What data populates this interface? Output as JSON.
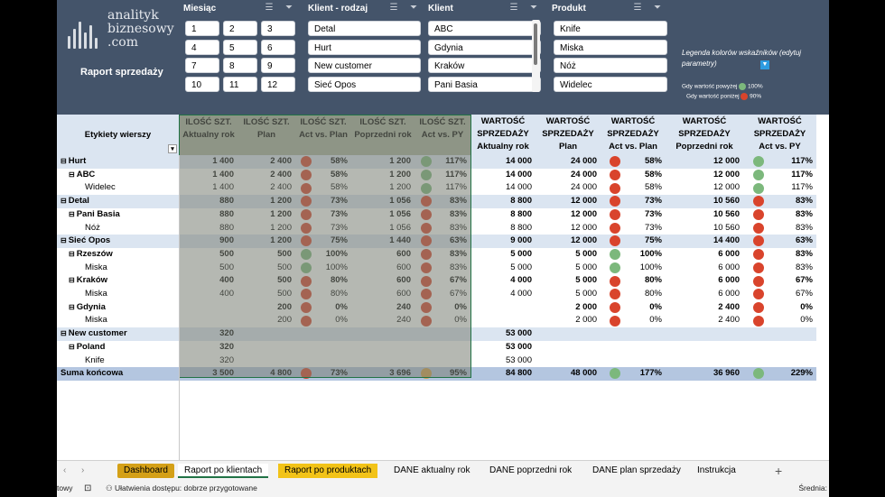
{
  "report_title": "Raport sprzedaży",
  "logo_text": [
    "analityk",
    "biznesowy",
    ".com"
  ],
  "slicers": [
    {
      "title": "Miesiąc",
      "items": [
        "1",
        "2",
        "3",
        "4",
        "5",
        "6",
        "7",
        "8",
        "9",
        "10",
        "11",
        "12"
      ]
    },
    {
      "title": "Klient - rodzaj",
      "items": [
        "Detal",
        "Hurt",
        "New customer",
        "Sieć Opos"
      ]
    },
    {
      "title": "Klient",
      "items": [
        "ABC",
        "Gdynia",
        "Kraków",
        "Pani Basia"
      ]
    },
    {
      "title": "Produkt",
      "items": [
        "Knife",
        "Miska",
        "Nóż",
        "Widelec"
      ]
    }
  ],
  "legend": {
    "title": "Legenda kolorów wskaźników (edytuj parametry)",
    "above": "Gdy wartość powyżej",
    "above_val": "100%",
    "below": "Gdy wartość poniżej",
    "below_val": "90%"
  },
  "headers": {
    "rows": "Etykiety wierszy",
    "cols": [
      [
        "ILOŚĆ SZT.",
        "Aktualny rok"
      ],
      [
        "ILOŚĆ SZT.",
        "Plan"
      ],
      [
        "ILOŚĆ SZT.",
        "Act vs. Plan"
      ],
      [
        "ILOŚĆ SZT.",
        "Poprzedni rok"
      ],
      [
        "ILOŚĆ SZT.",
        "Act vs. PY"
      ],
      [
        "WARTOŚĆ",
        "SPRZEDAŻY",
        "Aktualny rok"
      ],
      [
        "WARTOŚĆ",
        "SPRZEDAŻY",
        "Plan"
      ],
      [
        "WARTOŚĆ",
        "SPRZEDAŻY",
        "Act vs. Plan"
      ],
      [
        "WARTOŚĆ",
        "SPRZEDAŻY",
        "Poprzedni rok"
      ],
      [
        "WARTOŚĆ",
        "SPRZEDAŻY",
        "Act vs. PY"
      ]
    ]
  },
  "rows": [
    {
      "label": "Hurt",
      "lvl": 0,
      "b": true,
      "band": true,
      "v": [
        "1 400",
        "2 400",
        "r",
        "58%",
        "1 200",
        "g",
        "117%",
        "14 000",
        "24 000",
        "r",
        "58%",
        "12 000",
        "g",
        "117%"
      ]
    },
    {
      "label": "ABC",
      "lvl": 1,
      "b": true,
      "v": [
        "1 400",
        "2 400",
        "r",
        "58%",
        "1 200",
        "g",
        "117%",
        "14 000",
        "24 000",
        "r",
        "58%",
        "12 000",
        "g",
        "117%"
      ]
    },
    {
      "label": "Widelec",
      "lvl": 2,
      "v": [
        "1 400",
        "2 400",
        "r",
        "58%",
        "1 200",
        "g",
        "117%",
        "14 000",
        "24 000",
        "r",
        "58%",
        "12 000",
        "g",
        "117%"
      ]
    },
    {
      "label": "Detal",
      "lvl": 0,
      "b": true,
      "band": true,
      "v": [
        "880",
        "1 200",
        "r",
        "73%",
        "1 056",
        "r",
        "83%",
        "8 800",
        "12 000",
        "r",
        "73%",
        "10 560",
        "r",
        "83%"
      ]
    },
    {
      "label": "Pani Basia",
      "lvl": 1,
      "b": true,
      "v": [
        "880",
        "1 200",
        "r",
        "73%",
        "1 056",
        "r",
        "83%",
        "8 800",
        "12 000",
        "r",
        "73%",
        "10 560",
        "r",
        "83%"
      ]
    },
    {
      "label": "Nóż",
      "lvl": 2,
      "v": [
        "880",
        "1 200",
        "r",
        "73%",
        "1 056",
        "r",
        "83%",
        "8 800",
        "12 000",
        "r",
        "73%",
        "10 560",
        "r",
        "83%"
      ]
    },
    {
      "label": "Sieć Opos",
      "lvl": 0,
      "b": true,
      "band": true,
      "v": [
        "900",
        "1 200",
        "r",
        "75%",
        "1 440",
        "r",
        "63%",
        "9 000",
        "12 000",
        "r",
        "75%",
        "14 400",
        "r",
        "63%"
      ]
    },
    {
      "label": "Rzeszów",
      "lvl": 1,
      "b": true,
      "v": [
        "500",
        "500",
        "g",
        "100%",
        "600",
        "r",
        "83%",
        "5 000",
        "5 000",
        "g",
        "100%",
        "6 000",
        "r",
        "83%"
      ]
    },
    {
      "label": "Miska",
      "lvl": 2,
      "v": [
        "500",
        "500",
        "g",
        "100%",
        "600",
        "r",
        "83%",
        "5 000",
        "5 000",
        "g",
        "100%",
        "6 000",
        "r",
        "83%"
      ]
    },
    {
      "label": "Kraków",
      "lvl": 1,
      "b": true,
      "v": [
        "400",
        "500",
        "r",
        "80%",
        "600",
        "r",
        "67%",
        "4 000",
        "5 000",
        "r",
        "80%",
        "6 000",
        "r",
        "67%"
      ]
    },
    {
      "label": "Miska",
      "lvl": 2,
      "v": [
        "400",
        "500",
        "r",
        "80%",
        "600",
        "r",
        "67%",
        "4 000",
        "5 000",
        "r",
        "80%",
        "6 000",
        "r",
        "67%"
      ]
    },
    {
      "label": "Gdynia",
      "lvl": 1,
      "b": true,
      "v": [
        "",
        "200",
        "r",
        "0%",
        "240",
        "r",
        "0%",
        "",
        "2 000",
        "r",
        "0%",
        "2 400",
        "r",
        "0%"
      ]
    },
    {
      "label": "Miska",
      "lvl": 2,
      "v": [
        "",
        "200",
        "r",
        "0%",
        "240",
        "r",
        "0%",
        "",
        "2 000",
        "r",
        "0%",
        "2 400",
        "r",
        "0%"
      ]
    },
    {
      "label": "New customer",
      "lvl": 0,
      "b": true,
      "band": true,
      "v": [
        "320",
        "",
        "",
        "",
        "",
        "",
        "",
        "53 000",
        "",
        "",
        "",
        "",
        "",
        ""
      ]
    },
    {
      "label": "Poland",
      "lvl": 1,
      "b": true,
      "v": [
        "320",
        "",
        "",
        "",
        "",
        "",
        "",
        "53 000",
        "",
        "",
        "",
        "",
        "",
        ""
      ]
    },
    {
      "label": "Knife",
      "lvl": 2,
      "v": [
        "320",
        "",
        "",
        "",
        "",
        "",
        "",
        "53 000",
        "",
        "",
        "",
        "",
        "",
        ""
      ]
    },
    {
      "label": "Suma końcowa",
      "lvl": 0,
      "b": true,
      "total": true,
      "v": [
        "3 500",
        "4 800",
        "r",
        "73%",
        "3 696",
        "y",
        "95%",
        "84 800",
        "48 000",
        "g",
        "177%",
        "36 960",
        "g",
        "229%"
      ]
    }
  ],
  "tabs": [
    "Dashboard",
    "Raport po klientach",
    "Raport po produktach",
    "DANE aktualny rok",
    "DANE poprzedni rok",
    "DANE plan sprzedaży",
    "Instrukcja"
  ],
  "status": {
    "left": "towy",
    "access": "Ułatwienia dostępu: dobrze przygotowane",
    "right": "Średnia:"
  },
  "colors": {
    "header_bg": "#44546a",
    "green": "#7cb87c",
    "red": "#d9442c",
    "amber": "#d4a04a"
  }
}
